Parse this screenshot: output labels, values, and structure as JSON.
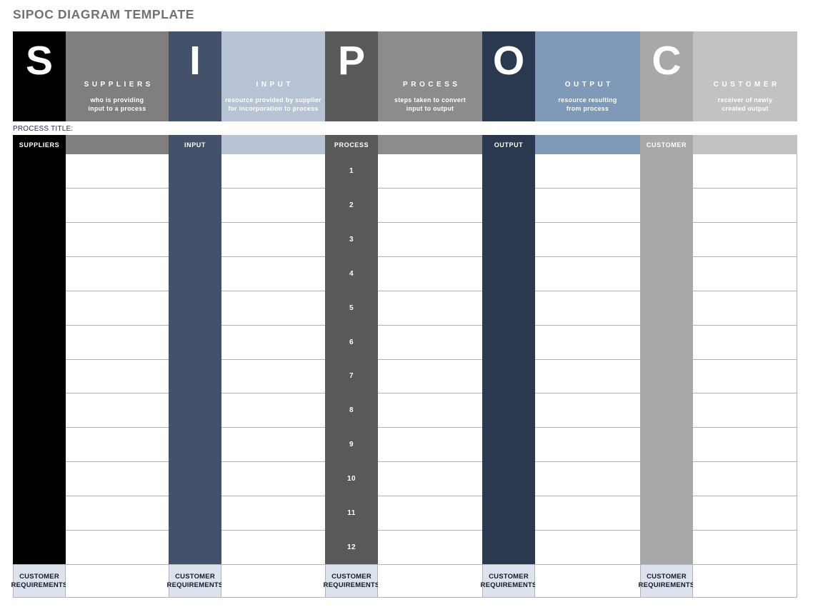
{
  "page": {
    "title": "SIPOC DIAGRAM TEMPLATE",
    "process_title_label": "PROCESS TITLE:"
  },
  "colors": {
    "gridline": "#b3b3b3",
    "footer_cell_bg": "#dce3ee",
    "footer_text": "#141b28",
    "page_title_text": "#717171",
    "process_title_text": "#22304a",
    "banner_text": "#ffffff"
  },
  "sections": [
    {
      "id": "suppliers",
      "letter": "S",
      "letter_bg": "#000000",
      "banner_title": "SUPPLIERS",
      "banner_desc": [
        "who is providing",
        "input to a process"
      ],
      "desc_bg": "#7f7f7f",
      "column_header": "SUPPLIERS"
    },
    {
      "id": "input",
      "letter": "I",
      "letter_bg": "#44516a",
      "banner_title": "INPUT",
      "banner_desc": [
        "resource provided by supplier",
        "for incorporation to process"
      ],
      "desc_bg": "#b7c3d5",
      "column_header": "INPUT"
    },
    {
      "id": "process",
      "letter": "P",
      "letter_bg": "#595959",
      "banner_title": "PROCESS",
      "banner_desc": [
        "steps taken to convert",
        "input to output"
      ],
      "desc_bg": "#8c8c8c",
      "column_header": "PROCESS",
      "steps": [
        "1",
        "2",
        "3",
        "4",
        "5",
        "6",
        "7",
        "8",
        "9",
        "10",
        "11",
        "12"
      ]
    },
    {
      "id": "output",
      "letter": "O",
      "letter_bg": "#2b3950",
      "banner_title": "OUTPUT",
      "banner_desc": [
        "resource resulting",
        "from process"
      ],
      "desc_bg": "#7f99b8",
      "column_header": "OUTPUT"
    },
    {
      "id": "customer",
      "letter": "C",
      "letter_bg": "#a8a8a8",
      "banner_title": "CUSTOMER",
      "banner_desc": [
        "receiver of newly",
        "created output"
      ],
      "desc_bg": "#c2c2c2",
      "column_header": "CUSTOMER"
    }
  ],
  "table": {
    "rows": 12,
    "footer_label": [
      "CUSTOMER",
      "REQUIREMENTS"
    ]
  }
}
